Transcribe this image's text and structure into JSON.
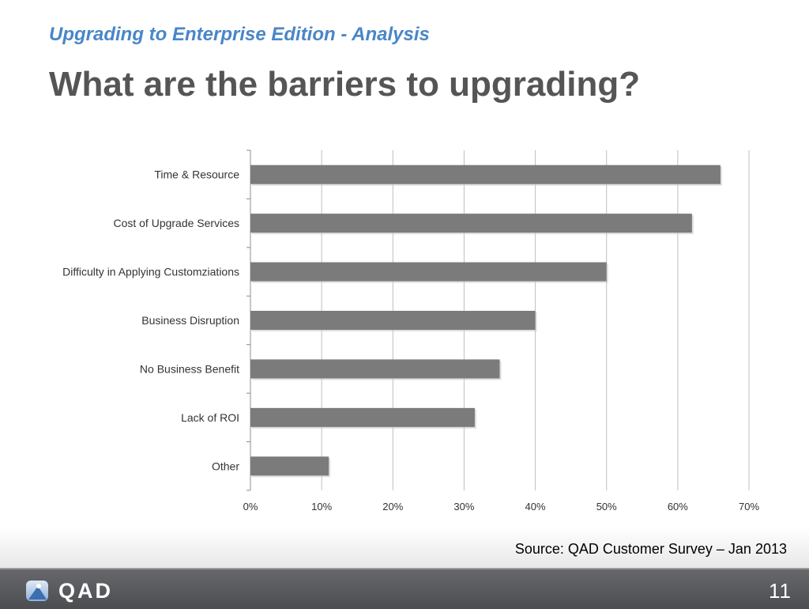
{
  "header": {
    "subtitle": "Upgrading to Enterprise Edition - Analysis",
    "title": "What are the barriers to upgrading?"
  },
  "chart_data": {
    "type": "bar",
    "orientation": "horizontal",
    "categories": [
      "Time & Resource",
      "Cost of Upgrade Services",
      "Difficulty in Applying Customziations",
      "Business Disruption",
      "No Business Benefit",
      "Lack of ROI",
      "Other"
    ],
    "values": [
      66,
      62,
      50,
      40,
      35,
      31.5,
      11
    ],
    "unit": "%",
    "xlim": [
      0,
      70
    ],
    "xticks": [
      "0%",
      "10%",
      "20%",
      "30%",
      "40%",
      "50%",
      "60%",
      "70%"
    ],
    "grid": true,
    "bar_color": "#7b7b7b",
    "grid_color": "#bfbfbf",
    "label_color": "#333333"
  },
  "source": "Source: QAD Customer Survey – Jan 2013",
  "footer": {
    "logo_text": "QAD",
    "page_number": "11"
  }
}
